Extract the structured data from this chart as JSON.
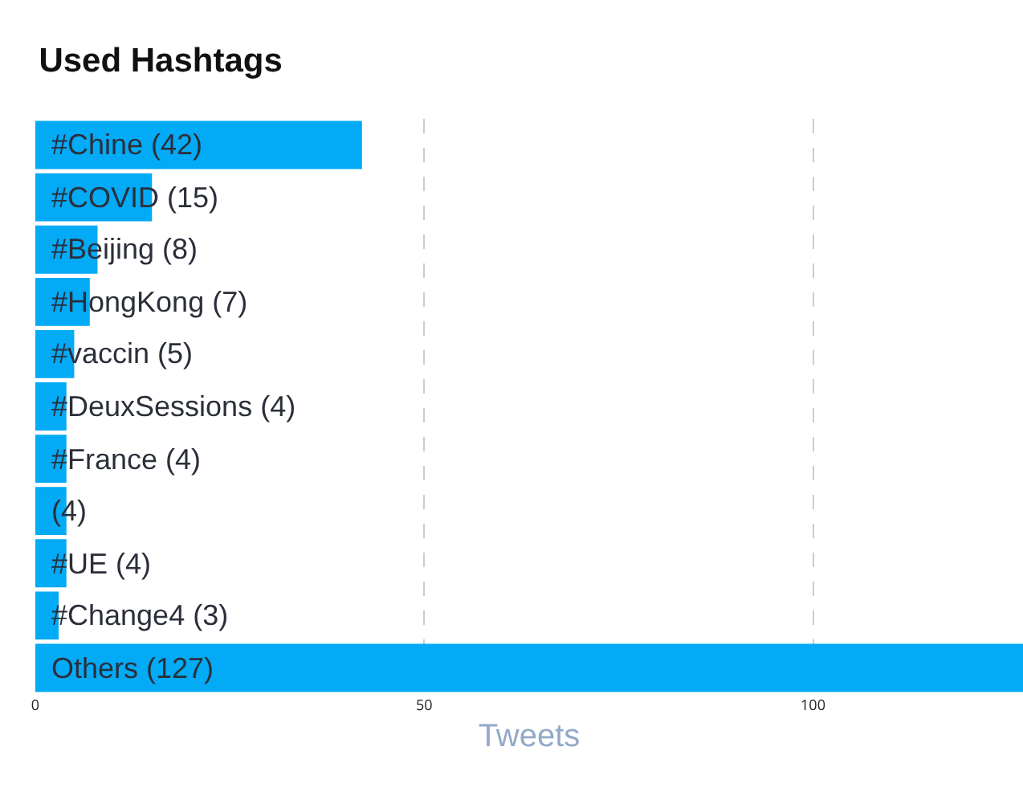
{
  "chart_data": {
    "type": "bar",
    "orientation": "horizontal",
    "title": "Used Hashtags",
    "xlabel": "Tweets",
    "categories": [
      "#Chine",
      "#COVID",
      "#Beijing",
      "#HongKong",
      "#vaccin",
      "#DeuxSessions",
      "#France",
      null,
      "#UE",
      "#Change4",
      "Others"
    ],
    "values": [
      42,
      15,
      8,
      7,
      5,
      4,
      4,
      4,
      4,
      3,
      127
    ],
    "value_labels": [
      "(42)",
      "(15)",
      "(8)",
      "(7)",
      "(5)",
      "(4)",
      "(4)",
      "(4)",
      "(4)",
      "(3)",
      "(127)"
    ],
    "color": "#03aaf5",
    "xlim": [
      0,
      127
    ],
    "xticks": [
      0,
      50,
      100
    ],
    "grid": "x",
    "legend": false,
    "tick_labels": "x"
  }
}
